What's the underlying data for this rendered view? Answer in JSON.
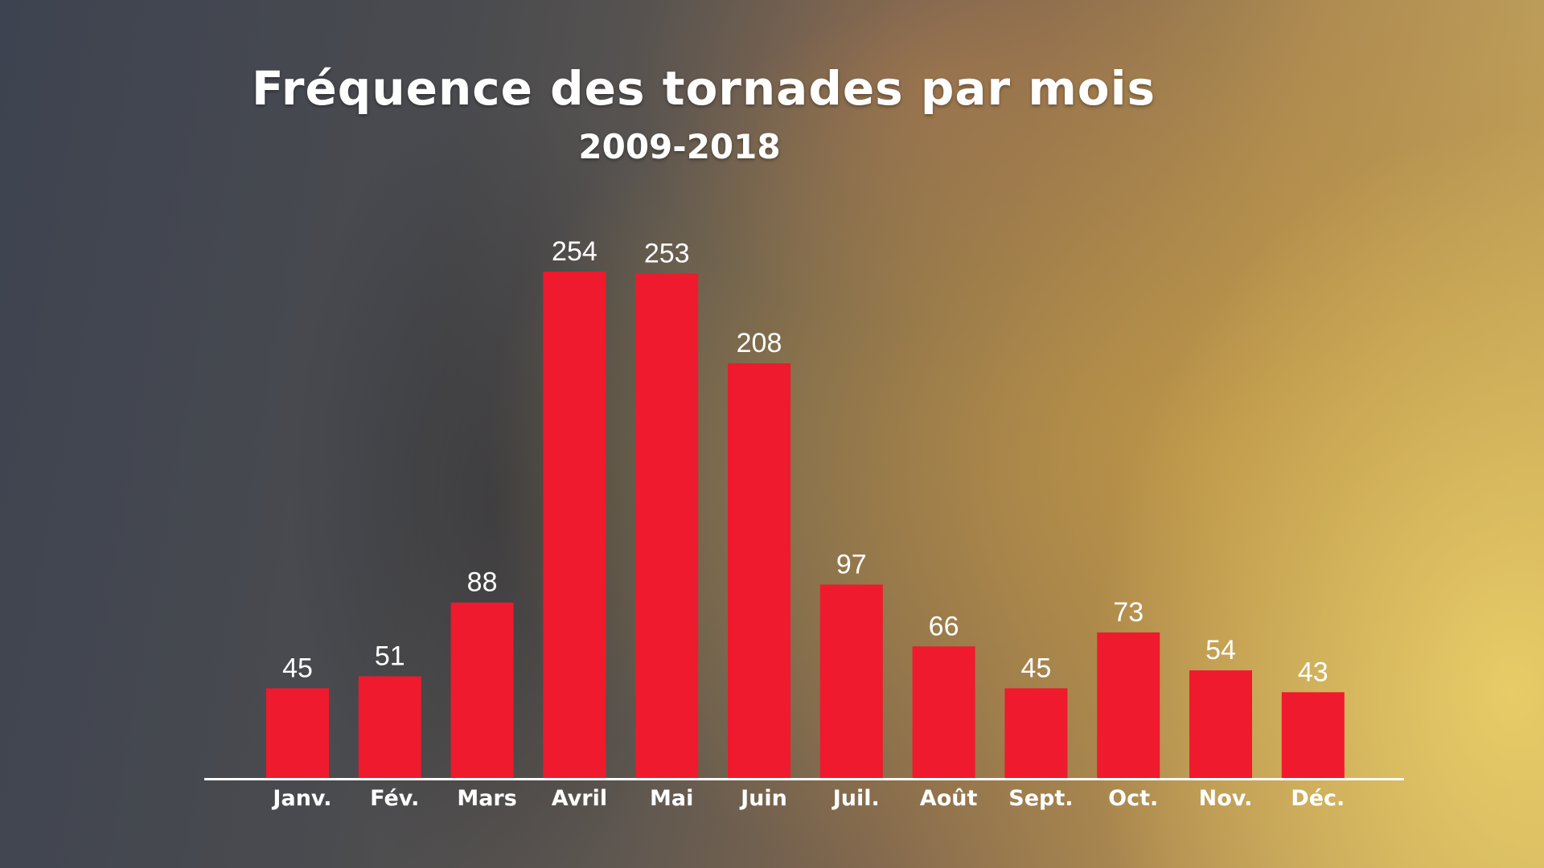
{
  "chart_data": {
    "type": "bar",
    "title": "Fréquence des tornades par mois",
    "subtitle": "2009-2018",
    "categories": [
      "Janv.",
      "Fév.",
      "Mars",
      "Avril",
      "Mai",
      "Juin",
      "Juil.",
      "Août",
      "Sept.",
      "Oct.",
      "Nov.",
      "Déc."
    ],
    "values": [
      45,
      51,
      88,
      254,
      253,
      208,
      97,
      66,
      45,
      73,
      54,
      43
    ],
    "xlabel": "",
    "ylabel": "",
    "ylim": [
      0,
      254
    ],
    "grid": false,
    "legend": "none",
    "data_labels": true
  },
  "colors": {
    "bar": "#ef1a2d",
    "text": "#ffffff",
    "axis": "#ffffff"
  }
}
